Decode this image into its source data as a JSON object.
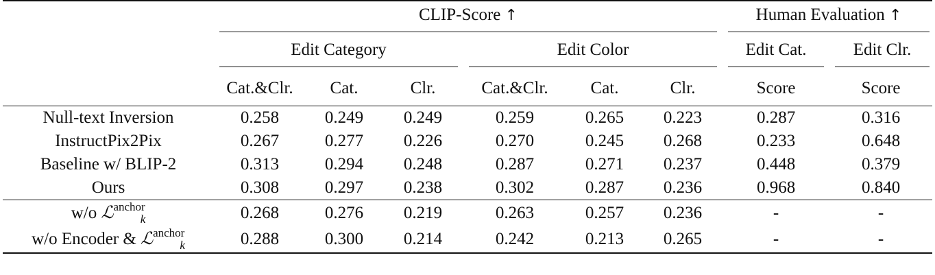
{
  "header": {
    "clip_score": "CLIP-Score ↑",
    "human_eval": "Human Evaluation ↑",
    "edit_category": "Edit Category",
    "edit_color": "Edit Color",
    "edit_cat_short": "Edit Cat.",
    "edit_clr_short": "Edit Clr.",
    "columns": [
      "Cat.&Clr.",
      "Cat.",
      "Clr.",
      "Cat.&Clr.",
      "Cat.",
      "Clr.",
      "Score",
      "Score"
    ]
  },
  "rows_main": [
    {
      "method": "Null-text Inversion",
      "values": [
        "0.258",
        "0.249",
        "0.249",
        "0.259",
        "0.265",
        "0.223",
        "0.287",
        "0.316"
      ]
    },
    {
      "method": "InstructPix2Pix",
      "values": [
        "0.267",
        "0.277",
        "0.226",
        "0.270",
        "0.245",
        "0.268",
        "0.233",
        "0.648"
      ]
    },
    {
      "method": "Baseline w/ BLIP-2",
      "values": [
        "0.313",
        "0.294",
        "0.248",
        "0.287",
        "0.271",
        "0.237",
        "0.448",
        "0.379"
      ]
    },
    {
      "method": "Ours",
      "values": [
        "0.308",
        "0.297",
        "0.238",
        "0.302",
        "0.287",
        "0.236",
        "0.968",
        "0.840"
      ]
    }
  ],
  "rows_ablation": [
    {
      "method_prefix": "w/o ",
      "math_letter": "ℒ",
      "math_sup": "anchor",
      "math_sub": "k",
      "values": [
        "0.268",
        "0.276",
        "0.219",
        "0.263",
        "0.257",
        "0.236",
        "-",
        "-"
      ]
    },
    {
      "method_prefix": "w/o Encoder & ",
      "math_letter": "ℒ",
      "math_sup": "anchor",
      "math_sub": "k",
      "values": [
        "0.288",
        "0.300",
        "0.214",
        "0.242",
        "0.213",
        "0.265",
        "-",
        "-"
      ]
    }
  ],
  "bold_cells": [
    {
      "section": "main",
      "row": 0,
      "col": 2
    },
    {
      "section": "main",
      "row": 1,
      "col": 5
    },
    {
      "section": "main",
      "row": 2,
      "col": 0
    },
    {
      "section": "main",
      "row": 3,
      "col": 3
    },
    {
      "section": "main",
      "row": 3,
      "col": 4
    },
    {
      "section": "main",
      "row": 3,
      "col": 6
    },
    {
      "section": "main",
      "row": 3,
      "col": 7
    },
    {
      "section": "ablation",
      "row": 1,
      "col": 1
    }
  ]
}
